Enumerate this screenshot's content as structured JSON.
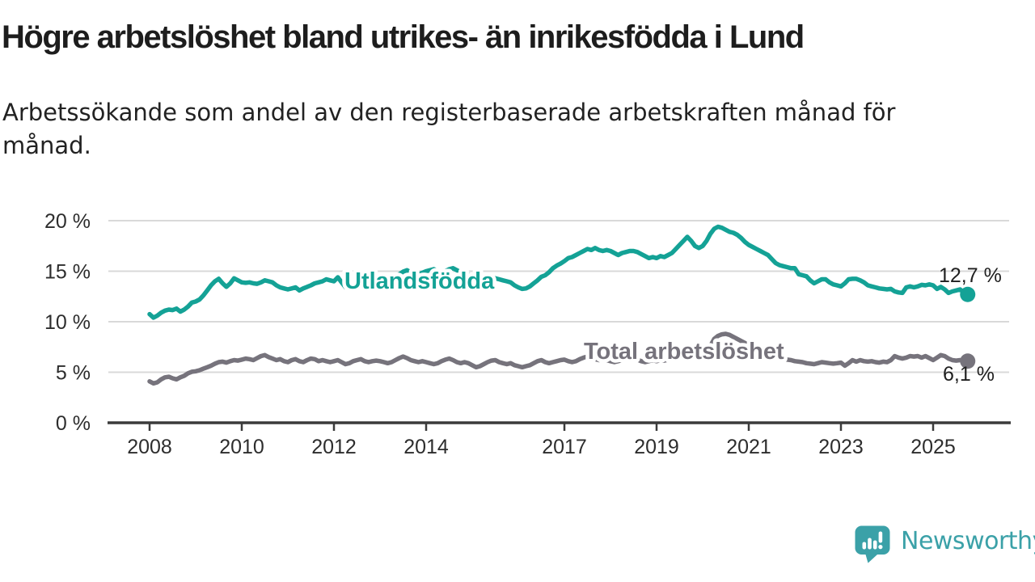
{
  "header": {
    "title": "Högre arbetslöshet bland utrikes- än inrikesfödda i Lund",
    "subtitle": "Arbetssökande som andel av den registerbaserade arbetskraften månad för\nmånad."
  },
  "footer": {
    "brand": "Newsworthy",
    "logo_icon": "newsworthy-speech-bubble-bar-chart-icon",
    "brand_color": "#3ba1a8"
  },
  "colors": {
    "foreign_born_line": "#14a296",
    "total_line": "#76737c",
    "grid": "#d9d9d9",
    "axis": "#3b3b3b",
    "tick_text": "#2d2d2d",
    "end_label_text": "#1f1f1f",
    "background": "#ffffff"
  },
  "chart_data": {
    "type": "line",
    "title": "Högre arbetslöshet bland utrikes- än inrikesfödda i Lund",
    "subtitle": "Arbetssökande som andel av den registerbaserade arbetskraften månad för månad.",
    "frequency": "monthly",
    "x_start": "2008-01",
    "x_end": "2025-10",
    "x_tick_years": [
      2008,
      2010,
      2012,
      2014,
      2017,
      2019,
      2021,
      2023,
      2025
    ],
    "x_tick_labels": [
      "2008",
      "2010",
      "2012",
      "2014",
      "2017",
      "2019",
      "2021",
      "2023",
      "2025"
    ],
    "y_ticks": [
      0,
      5,
      10,
      15,
      20
    ],
    "y_tick_labels": [
      "0 %",
      "5 %",
      "10 %",
      "15 %",
      "20 %"
    ],
    "ylim": [
      0,
      21
    ],
    "grid": "horizontal",
    "legend_position": "inline-labels",
    "series": [
      {
        "name": "Utlandsfödda",
        "color": "#14a296",
        "end_label": "12,7 %",
        "last_value": 12.7,
        "values": [
          10.75,
          10.4,
          10.6,
          10.9,
          11.1,
          11.2,
          11.15,
          11.3,
          11.0,
          11.2,
          11.5,
          11.9,
          12.0,
          12.2,
          12.6,
          13.1,
          13.6,
          14.0,
          14.25,
          13.8,
          13.45,
          13.8,
          14.3,
          14.1,
          13.9,
          13.85,
          13.9,
          13.8,
          13.75,
          13.9,
          14.1,
          14.0,
          13.9,
          13.6,
          13.4,
          13.3,
          13.2,
          13.3,
          13.4,
          13.1,
          13.3,
          13.45,
          13.6,
          13.8,
          13.9,
          14.0,
          14.2,
          14.1,
          14.0,
          14.4,
          13.9,
          13.4,
          13.5,
          13.65,
          13.8,
          14.0,
          14.2,
          14.1,
          14.0,
          14.15,
          14.3,
          14.45,
          14.3,
          14.35,
          14.5,
          14.7,
          14.95,
          15.1,
          14.9,
          14.75,
          14.7,
          14.85,
          15.0,
          15.1,
          15.2,
          15.0,
          14.9,
          15.0,
          15.2,
          15.3,
          15.1,
          14.9,
          14.8,
          14.6,
          14.6,
          14.5,
          14.6,
          14.4,
          14.3,
          14.4,
          14.3,
          14.2,
          14.1,
          14.0,
          13.9,
          13.6,
          13.4,
          13.25,
          13.3,
          13.5,
          13.8,
          14.1,
          14.45,
          14.6,
          14.9,
          15.3,
          15.55,
          15.75,
          16.0,
          16.3,
          16.4,
          16.6,
          16.8,
          17.0,
          17.2,
          17.1,
          17.3,
          17.1,
          17.0,
          17.1,
          17.0,
          16.8,
          16.6,
          16.8,
          16.9,
          17.0,
          17.0,
          16.9,
          16.7,
          16.5,
          16.3,
          16.4,
          16.3,
          16.5,
          16.4,
          16.6,
          16.8,
          17.2,
          17.6,
          18.0,
          18.4,
          18.0,
          17.5,
          17.3,
          17.5,
          18.0,
          18.7,
          19.2,
          19.4,
          19.3,
          19.1,
          18.9,
          18.8,
          18.6,
          18.3,
          17.9,
          17.6,
          17.4,
          17.2,
          17.0,
          16.8,
          16.6,
          16.2,
          15.8,
          15.6,
          15.5,
          15.4,
          15.3,
          15.3,
          14.7,
          14.6,
          14.5,
          14.1,
          13.8,
          14.0,
          14.2,
          14.2,
          13.9,
          13.7,
          13.6,
          13.5,
          13.8,
          14.2,
          14.25,
          14.25,
          14.1,
          13.9,
          13.6,
          13.5,
          13.4,
          13.3,
          13.25,
          13.2,
          13.25,
          13.0,
          12.9,
          12.85,
          13.4,
          13.5,
          13.4,
          13.5,
          13.65,
          13.6,
          13.7,
          13.6,
          13.25,
          13.45,
          13.2,
          12.85,
          13.0,
          13.1,
          13.2,
          12.9,
          12.7
        ]
      },
      {
        "name": "Total arbetslöshet",
        "color": "#76737c",
        "end_label": "6,1 %",
        "last_value": 6.1,
        "values": [
          4.1,
          3.9,
          4.0,
          4.3,
          4.5,
          4.55,
          4.4,
          4.3,
          4.5,
          4.65,
          4.9,
          5.05,
          5.1,
          5.2,
          5.35,
          5.5,
          5.65,
          5.85,
          6.0,
          6.05,
          5.95,
          6.1,
          6.2,
          6.15,
          6.25,
          6.35,
          6.3,
          6.2,
          6.4,
          6.6,
          6.7,
          6.5,
          6.35,
          6.2,
          6.3,
          6.1,
          6.0,
          6.2,
          6.3,
          6.1,
          6.0,
          6.2,
          6.35,
          6.3,
          6.1,
          6.2,
          6.1,
          6.0,
          6.1,
          6.2,
          6.0,
          5.8,
          5.9,
          6.1,
          6.2,
          6.3,
          6.1,
          6.0,
          6.1,
          6.15,
          6.1,
          6.0,
          5.9,
          6.0,
          6.2,
          6.4,
          6.55,
          6.4,
          6.2,
          6.1,
          6.0,
          6.1,
          6.0,
          5.9,
          5.8,
          5.9,
          6.1,
          6.25,
          6.35,
          6.2,
          6.0,
          5.9,
          6.0,
          5.9,
          5.7,
          5.5,
          5.6,
          5.8,
          6.0,
          6.15,
          6.2,
          6.0,
          5.9,
          5.8,
          5.9,
          5.7,
          5.6,
          5.5,
          5.6,
          5.7,
          5.9,
          6.1,
          6.2,
          6.0,
          5.9,
          6.0,
          6.1,
          6.2,
          6.25,
          6.1,
          6.0,
          6.1,
          6.3,
          6.45,
          6.55,
          6.4,
          6.3,
          6.2,
          6.3,
          6.2,
          6.1,
          6.0,
          6.1,
          6.2,
          6.4,
          6.5,
          6.4,
          6.25,
          6.1,
          6.0,
          6.1,
          6.2,
          6.1,
          6.2,
          6.15,
          6.25,
          6.4,
          6.6,
          6.7,
          6.5,
          6.4,
          6.35,
          6.45,
          6.6,
          6.8,
          7.0,
          7.6,
          8.3,
          8.6,
          8.75,
          8.8,
          8.7,
          8.5,
          8.3,
          8.1,
          7.9,
          7.7,
          7.5,
          7.3,
          7.1,
          6.9,
          6.75,
          6.6,
          6.5,
          6.4,
          6.3,
          6.25,
          6.2,
          6.1,
          6.05,
          6.0,
          5.9,
          5.85,
          5.8,
          5.9,
          6.0,
          5.95,
          5.9,
          5.85,
          5.9,
          5.95,
          5.65,
          5.9,
          6.2,
          6.05,
          6.2,
          6.1,
          6.05,
          6.1,
          6.0,
          5.95,
          6.05,
          6.0,
          6.2,
          6.6,
          6.45,
          6.35,
          6.45,
          6.6,
          6.55,
          6.6,
          6.45,
          6.6,
          6.4,
          6.2,
          6.45,
          6.7,
          6.6,
          6.35,
          6.2,
          6.15,
          6.2,
          6.15,
          6.1
        ]
      }
    ]
  }
}
